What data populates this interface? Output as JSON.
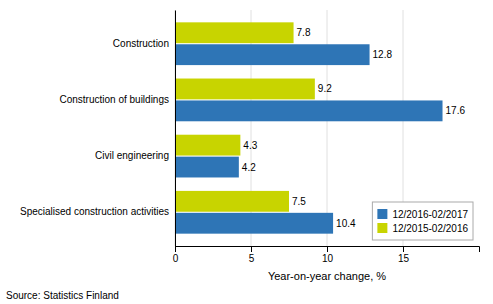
{
  "chart_data": {
    "type": "bar",
    "orientation": "horizontal",
    "categories": [
      "Construction",
      "Construction of buildings",
      "Civil engineering",
      "Specialised construction activities"
    ],
    "series": [
      {
        "name": "12/2016-02/2017",
        "color": "#2E75B6",
        "values": [
          12.8,
          17.6,
          4.2,
          10.4
        ]
      },
      {
        "name": "12/2015-02/2016",
        "color": "#C8D400",
        "values": [
          7.8,
          9.2,
          4.3,
          7.5
        ]
      }
    ],
    "x_label": "Year-on-year change, %",
    "xlim": [
      0,
      20
    ],
    "xticks": [
      0,
      5,
      10,
      15
    ],
    "grid": true,
    "legend": "lower right",
    "data_labels": true,
    "annotations": [
      "Source: Statistics Finland"
    ]
  }
}
